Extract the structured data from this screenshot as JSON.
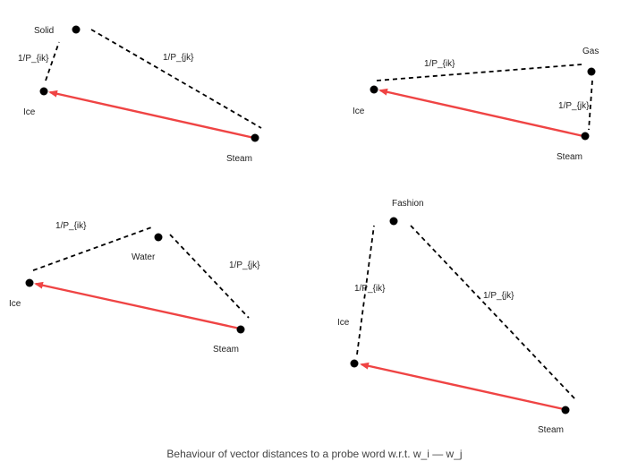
{
  "colors": {
    "vector": "#ef4444",
    "dashed": "#000000",
    "point": "#000000"
  },
  "panels": [
    {
      "labels": {
        "ice": "Ice",
        "steam": "Steam",
        "probe": "Solid",
        "ik": "1/P_{ik}",
        "jk": "1/P_{jk}"
      }
    },
    {
      "labels": {
        "ice": "Ice",
        "steam": "Steam",
        "probe": "Gas",
        "ik": "1/P_{ik}",
        "jk": "1/P_{jk}"
      }
    },
    {
      "labels": {
        "ice": "Ice",
        "steam": "Steam",
        "probe": "Water",
        "ik": "1/P_{ik}",
        "jk": "1/P_{jk}"
      }
    },
    {
      "labels": {
        "ice": "Ice",
        "steam": "Steam",
        "probe": "Fashion",
        "ik": "1/P_{ik}",
        "jk": "1/P_{jk}"
      }
    }
  ],
  "caption": "Behaviour of vector distances to a probe word w.r.t. w_i — w_j"
}
